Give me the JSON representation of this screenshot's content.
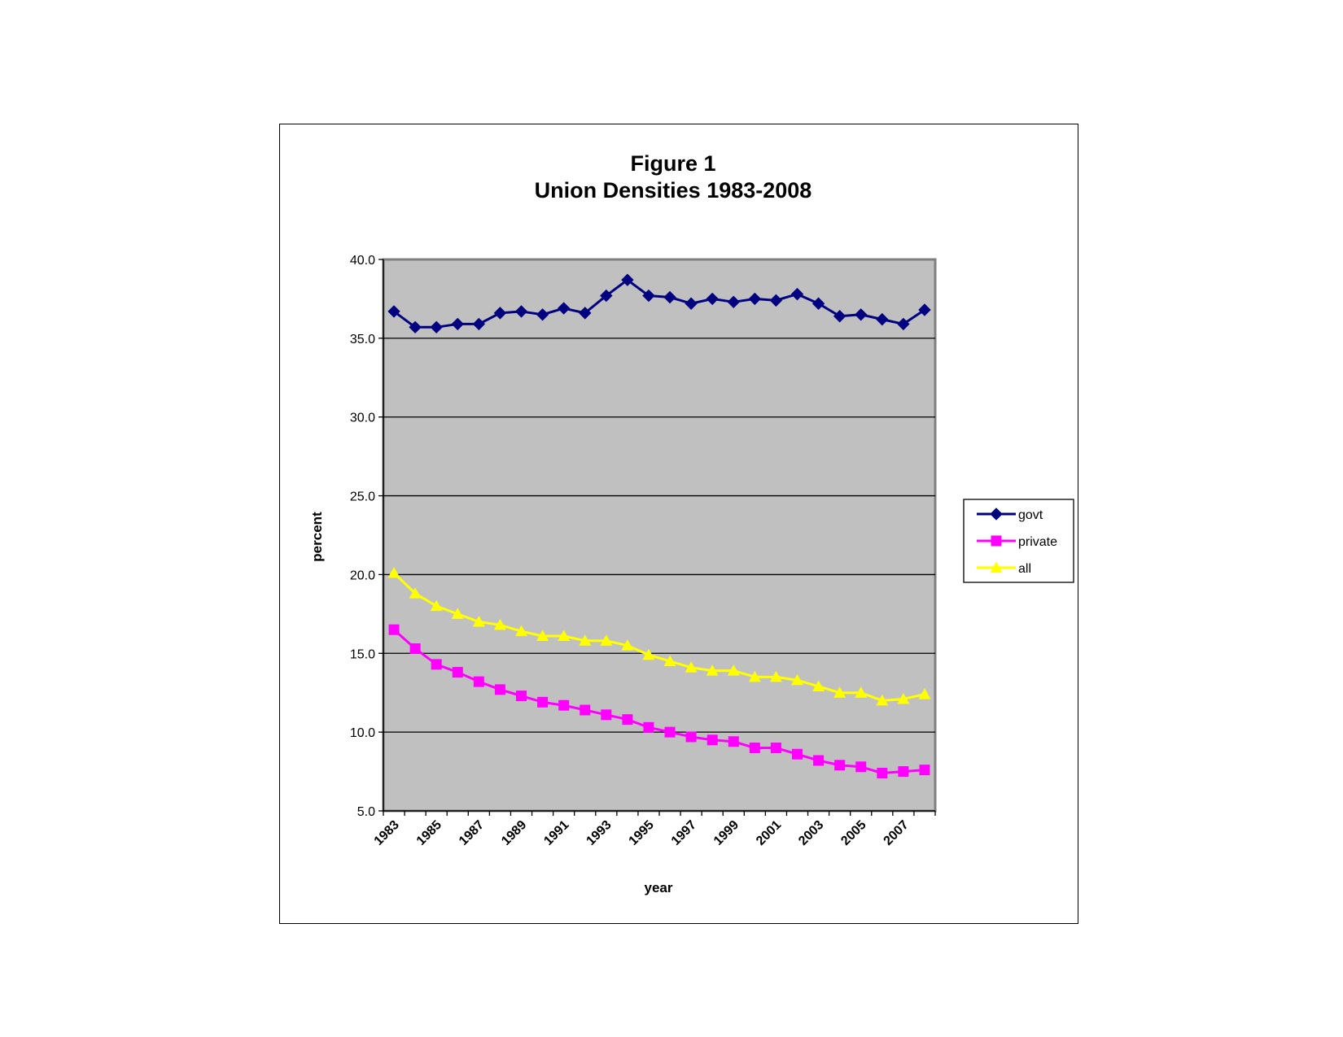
{
  "chart_data": {
    "type": "line",
    "title": "Figure 1",
    "subtitle": "Union Densities 1983-2008",
    "xlabel": "year",
    "ylabel": "percent",
    "ylim": [
      5.0,
      40.0
    ],
    "yticks": [
      "5.0",
      "10.0",
      "15.0",
      "20.0",
      "25.0",
      "30.0",
      "35.0",
      "40.0"
    ],
    "xtick_labels": [
      "1983",
      "1985",
      "1987",
      "1989",
      "1991",
      "1993",
      "1995",
      "1997",
      "1999",
      "2001",
      "2003",
      "2005",
      "2007"
    ],
    "x": [
      1983,
      1984,
      1985,
      1986,
      1987,
      1988,
      1989,
      1990,
      1991,
      1992,
      1993,
      1994,
      1995,
      1996,
      1997,
      1998,
      1999,
      2000,
      2001,
      2002,
      2003,
      2004,
      2005,
      2006,
      2007,
      2008
    ],
    "grid": "horizontal major gridlines",
    "plot_background": "#C0C0C0",
    "legend_position": "right",
    "series": [
      {
        "name": "govt",
        "color": "#000080",
        "marker": "diamond",
        "values": [
          36.7,
          35.7,
          35.7,
          35.9,
          35.9,
          36.6,
          36.7,
          36.5,
          36.9,
          36.6,
          37.7,
          38.7,
          37.7,
          37.6,
          37.2,
          37.5,
          37.3,
          37.5,
          37.4,
          37.8,
          37.2,
          36.4,
          36.5,
          36.2,
          35.9,
          36.8
        ]
      },
      {
        "name": "private",
        "color": "#FF00FF",
        "marker": "square",
        "values": [
          16.5,
          15.3,
          14.3,
          13.8,
          13.2,
          12.7,
          12.3,
          11.9,
          11.7,
          11.4,
          11.1,
          10.8,
          10.3,
          10.0,
          9.7,
          9.5,
          9.4,
          9.0,
          9.0,
          8.6,
          8.2,
          7.9,
          7.8,
          7.4,
          7.5,
          7.6
        ]
      },
      {
        "name": "all",
        "color": "#FFFF00",
        "marker": "triangle",
        "values": [
          20.1,
          18.8,
          18.0,
          17.5,
          17.0,
          16.8,
          16.4,
          16.1,
          16.1,
          15.8,
          15.8,
          15.5,
          14.9,
          14.5,
          14.1,
          13.9,
          13.9,
          13.5,
          13.5,
          13.3,
          12.9,
          12.5,
          12.5,
          12.0,
          12.1,
          12.4
        ]
      }
    ]
  }
}
